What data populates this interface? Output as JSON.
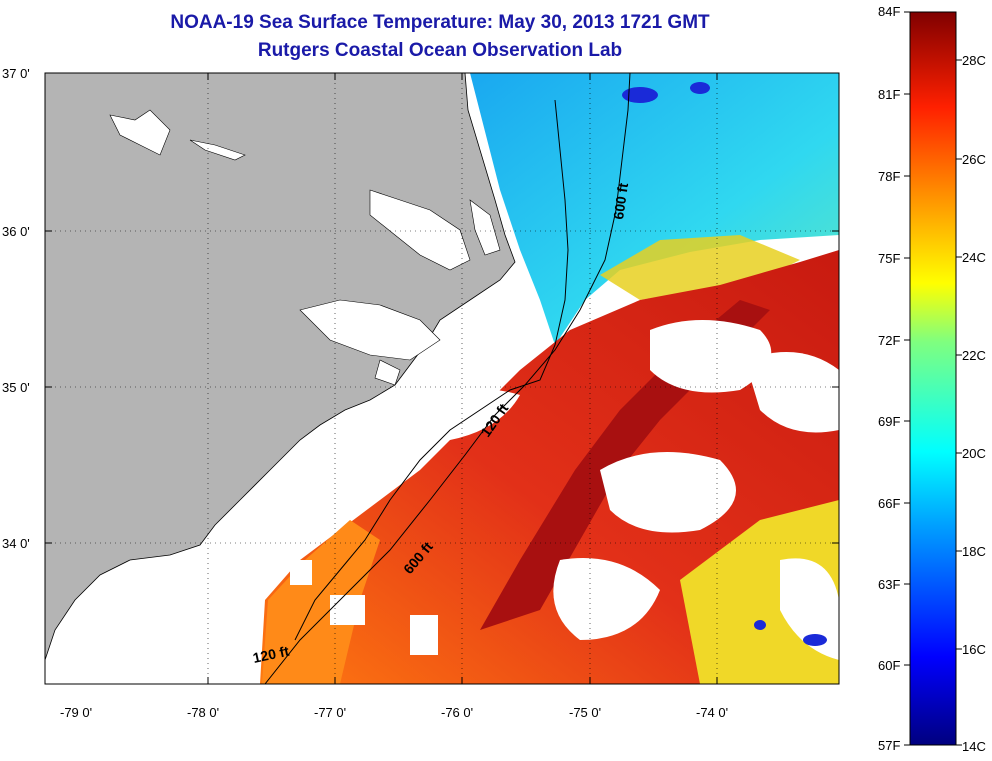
{
  "header": {
    "title": "NOAA-19 Sea Surface Temperature:  May 30, 2013 1721 GMT",
    "subtitle": "Rutgers Coastal Ocean Observation Lab"
  },
  "map": {
    "lat_labels": [
      "37 0'",
      "36 0'",
      "35 0'",
      "34 0'"
    ],
    "lon_labels": [
      "-79 0'",
      "-78 0'",
      "-77 0'",
      "-76 0'",
      "-75 0'",
      "-74 0'"
    ],
    "contour_labels": [
      "600 ft",
      "120 ft",
      "600 ft",
      "120 ft"
    ],
    "colors": {
      "land": "#b4b4b4",
      "no_data": "#ffffff",
      "warm": "#d42a10",
      "cool": "#2ad6f0"
    }
  },
  "colorbar": {
    "fahrenheit_labels": [
      "84F",
      "81F",
      "78F",
      "75F",
      "72F",
      "69F",
      "66F",
      "63F",
      "60F",
      "57F"
    ],
    "celsius_labels": [
      "28C",
      "26C",
      "24C",
      "22C",
      "20C",
      "18C",
      "16C",
      "14C"
    ],
    "range_celsius": [
      13.9,
      28.9
    ],
    "scale": "jet"
  }
}
